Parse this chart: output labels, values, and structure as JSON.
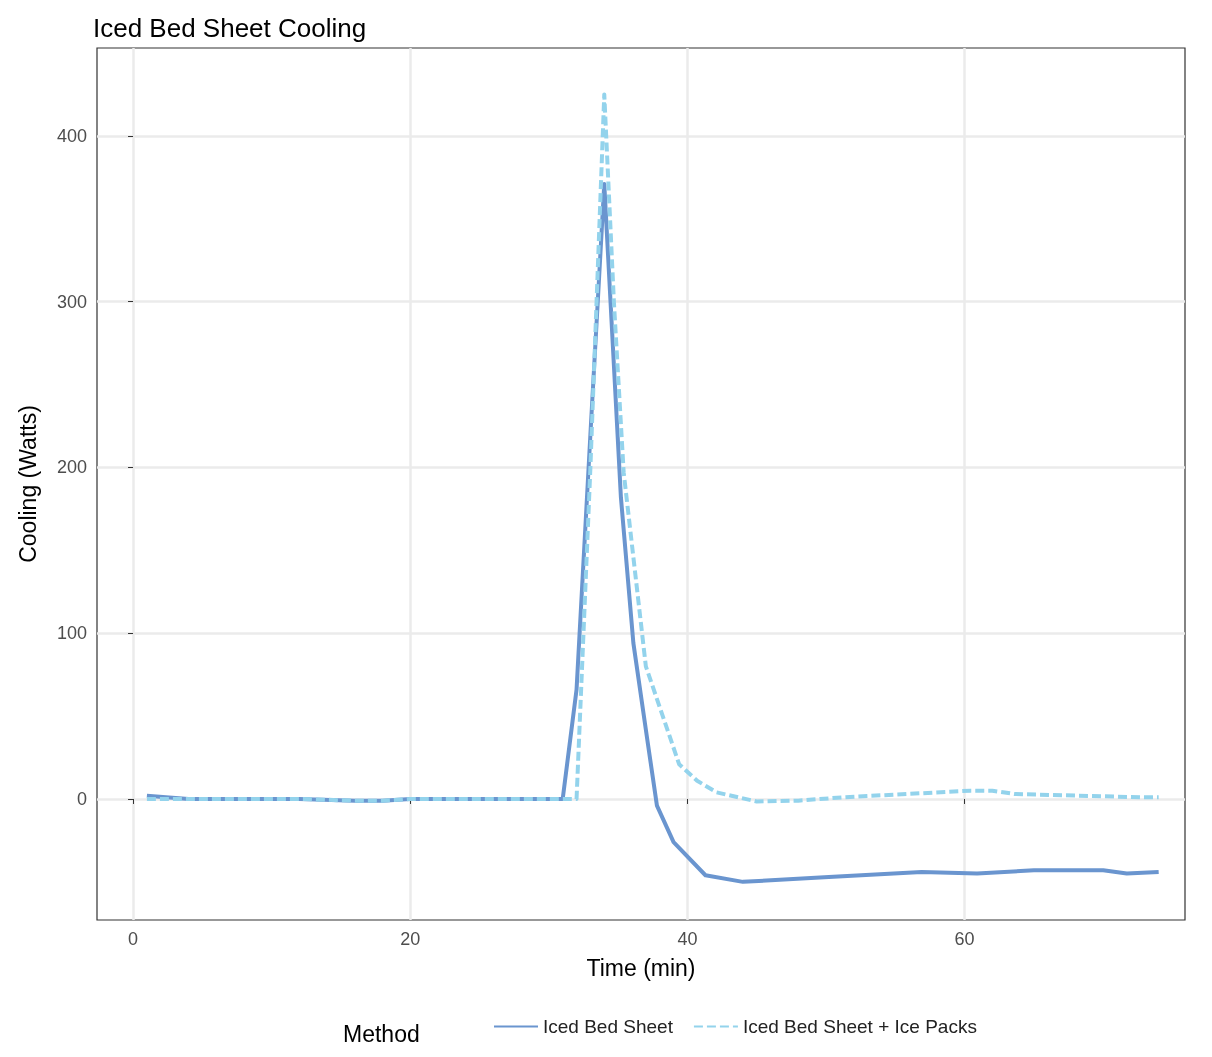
{
  "chart_data": {
    "type": "line",
    "title": "Iced Bed Sheet Cooling",
    "xlabel": "Time (min)",
    "ylabel": "Cooling (Watts)",
    "legend_title": "Method",
    "xlim": [
      -2.6,
      75.9
    ],
    "ylim": [
      -73,
      453
    ],
    "xticks": [
      0,
      20,
      40,
      60
    ],
    "yticks": [
      0,
      100,
      200,
      300,
      400
    ],
    "grid": true,
    "legend": "bottom",
    "marker": "none",
    "series": [
      {
        "name": "Iced Bed Sheet",
        "color": "#6a95cf",
        "line_style": "solid",
        "x": [
          1,
          4,
          8,
          12,
          16,
          18,
          20,
          24,
          28,
          31,
          32,
          33,
          34,
          35.2,
          36.1,
          37.1,
          37.8,
          39.0,
          41.3,
          44.0,
          50.2,
          56.9,
          60.9,
          65.0,
          70.0,
          71.7,
          74.0
        ],
        "values": [
          2,
          0,
          0,
          0,
          -1,
          -1,
          0,
          0,
          0,
          0,
          66,
          220,
          371,
          182,
          94,
          36,
          -4,
          -26,
          -46,
          -50,
          -47,
          -44,
          -45,
          -43,
          -43,
          -45,
          -44
        ]
      },
      {
        "name": "Iced Bed Sheet + Ice Packs",
        "color": "#93d3ec",
        "line_style": "dashed",
        "x": [
          1,
          4,
          8,
          12,
          16,
          18,
          20,
          24,
          28,
          31,
          32,
          33,
          34,
          34.7,
          35.4,
          37.0,
          39.4,
          40.7,
          42.1,
          45.0,
          48.0,
          51.2,
          55.8,
          60.4,
          62.0,
          63.6,
          68.2,
          72.8,
          74.0
        ],
        "values": [
          0,
          0,
          0,
          0,
          -1,
          -1,
          0,
          0,
          0,
          0,
          0,
          200,
          425,
          299,
          197,
          80,
          21,
          11,
          4,
          -1.5,
          -1,
          1,
          3,
          5,
          5,
          3,
          2,
          1,
          1
        ]
      }
    ]
  }
}
